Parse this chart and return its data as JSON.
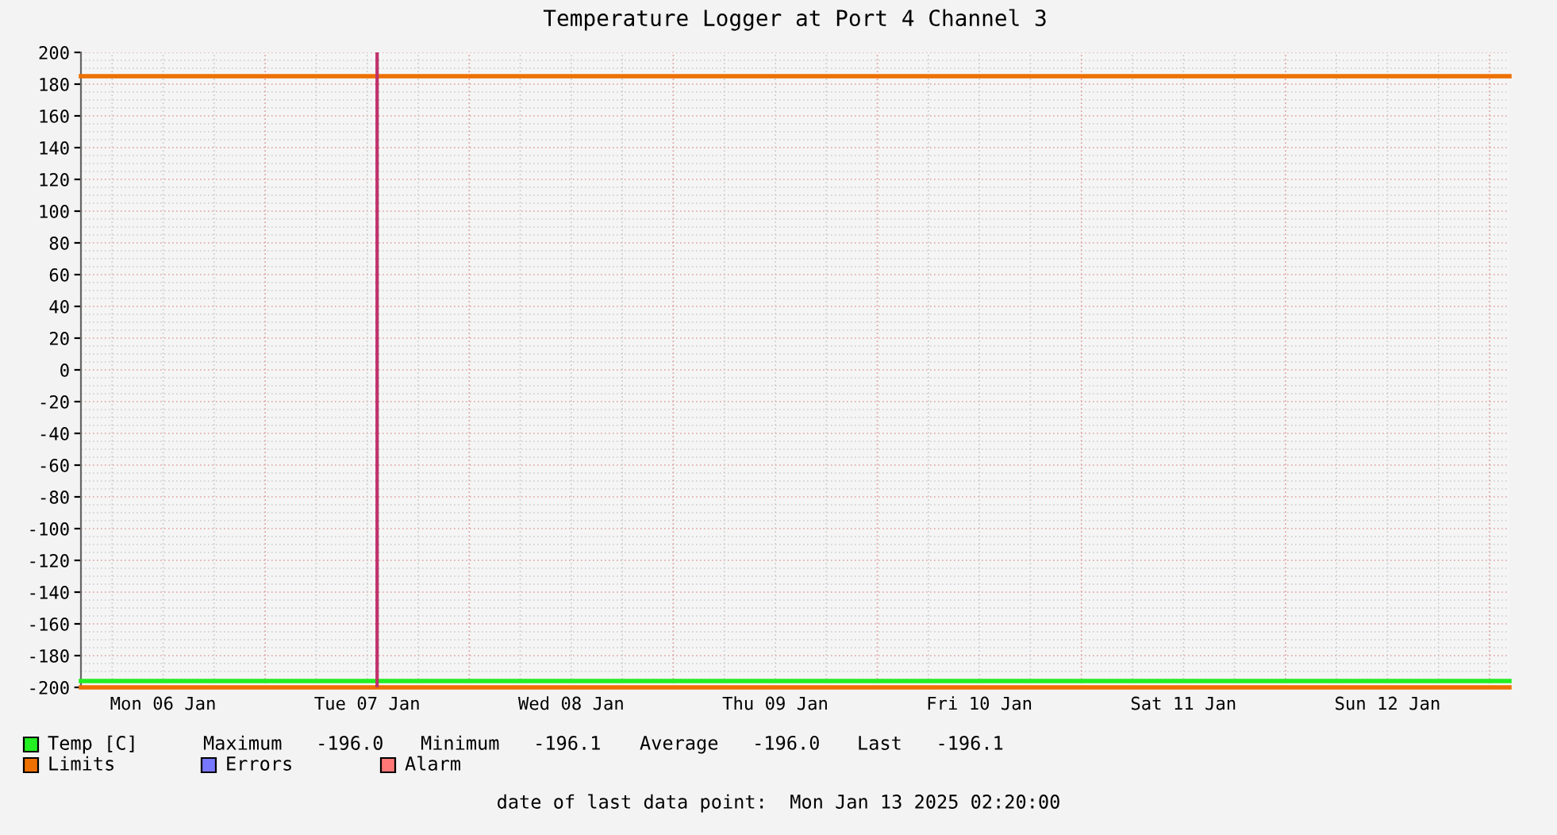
{
  "chart_data": {
    "type": "line",
    "title": "Temperature Logger at Port 4 Channel 3",
    "xlim": [
      "2025-01-06T02:20",
      "2025-01-13T02:20"
    ],
    "xticks": [
      {
        "value": "2025-01-06T12:00",
        "label": "Mon 06 Jan"
      },
      {
        "value": "2025-01-07T12:00",
        "label": "Tue 07 Jan"
      },
      {
        "value": "2025-01-08T12:00",
        "label": "Wed 08 Jan"
      },
      {
        "value": "2025-01-09T12:00",
        "label": "Thu 09 Jan"
      },
      {
        "value": "2025-01-10T12:00",
        "label": "Fri 10 Jan"
      },
      {
        "value": "2025-01-11T12:00",
        "label": "Sat 11 Jan"
      },
      {
        "value": "2025-01-12T12:00",
        "label": "Sun 12 Jan"
      }
    ],
    "ylim": [
      -200,
      200
    ],
    "yticks": [
      -200,
      -180,
      -160,
      -140,
      -120,
      -100,
      -80,
      -60,
      -40,
      -20,
      0,
      20,
      40,
      60,
      80,
      100,
      120,
      140,
      160,
      180,
      200
    ],
    "series": [
      {
        "name": "Temp [C]",
        "color": "#22ee22",
        "x": [
          "2025-01-06T02:20",
          "2025-01-13T02:20"
        ],
        "values": [
          -196,
          -196
        ]
      },
      {
        "name": "Limits",
        "color": "#ee7000",
        "x": [
          "2025-01-06T02:20",
          "2025-01-13T02:20"
        ],
        "values": [
          185,
          185
        ]
      },
      {
        "color": "#ee7000",
        "x": [
          "2025-01-06T02:20",
          "2025-01-13T02:20"
        ],
        "values": [
          -200,
          -200
        ]
      },
      {
        "name": "Errors",
        "color": "#7777ff"
      },
      {
        "name": "Alarm",
        "color": "#ff7777"
      }
    ],
    "ref_lines": [
      {
        "axis": "x",
        "value": "2025-01-07T13:10",
        "color": "#c0306a"
      }
    ],
    "annotations": [
      "Maximum   -196.0",
      "Minimum   -196.1",
      "Average   -196.0",
      "Last   -196.1",
      "date of last data point:  Mon Jan 13 2025 02:20:00"
    ],
    "grid": true,
    "legend": "bottom left",
    "marker": "none",
    "line_style": "solid"
  }
}
